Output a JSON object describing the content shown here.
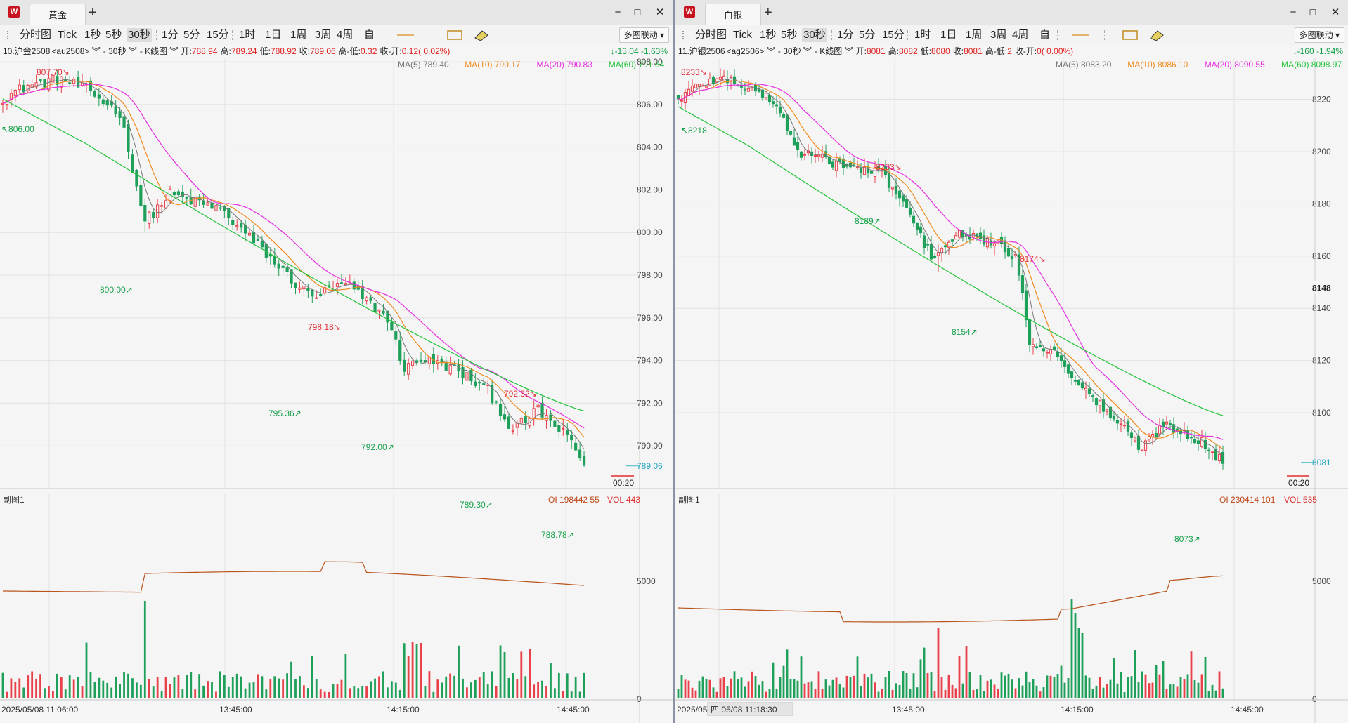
{
  "toolbar_labels": [
    "分时图",
    "Tick",
    "1秒",
    "5秒",
    "30秒",
    "1分",
    "5分",
    "15分",
    "1时",
    "1日",
    "1周",
    "3周",
    "4周",
    "自"
  ],
  "active_interval": "30秒",
  "linkage_label": "多图联动",
  "colors": {
    "up": "#e8414a",
    "down": "#1fa05a",
    "ma5": "#777777",
    "ma10": "#f08a1c",
    "ma20": "#e62ee0",
    "ma60": "#22c23a",
    "oi": "#b8541c"
  },
  "panels": [
    {
      "tab": "黄金",
      "quote": {
        "symbol": "10.沪金2508",
        "code": "<au2508> ︾",
        "interval": "- 30秒 ︾",
        "type": "- K线图 ︾",
        "open_label": "开:",
        "open": "788.94",
        "high_label": "高:",
        "high": "789.24",
        "low_label": "低:",
        "low": "788.92",
        "close_label": "收:",
        "close": "789.06",
        "hl_label": "高-低:",
        "hl": "0.32",
        "co_label": "收-开:",
        "co": "0.12( 0.02%)",
        "change": "↓-13.04 -1.63%"
      },
      "ma_labels": {
        "ma5": "MA(5) 789.40",
        "ma10": "MA(10) 790.17",
        "ma20": "MA(20) 790.83",
        "ma60": "MA(60) 791.64"
      },
      "price_axis": [
        "808.00",
        "806.00",
        "804.00",
        "802.00",
        "800.00",
        "798.00",
        "796.00",
        "794.00",
        "792.00",
        "790.00"
      ],
      "price_range": [
        788.0,
        808.2
      ],
      "last_price": "789.06",
      "countdown": "00:20",
      "peak_annotations": [
        "807.70↘",
        "798.18↘",
        "792.32↘"
      ],
      "trough_annotations": [
        "↖806.00",
        "800.00↗",
        "795.36↗",
        "792.00↗",
        "789.30↗",
        "788.78↗"
      ],
      "sub_title": "副图1",
      "sub_labels": {
        "oi": "OI 198442 55",
        "vol": "VOL 443"
      },
      "sub_axis": [
        "5000",
        "0"
      ],
      "time_labels": [
        "2025/05/08 11:06:00",
        "13:45:00",
        "14:15:00",
        "14:45:00"
      ],
      "chart_data": {
        "type": "candlestick",
        "waypoints": [
          {
            "i": 0,
            "p": 806.3
          },
          {
            "i": 6,
            "p": 806.9
          },
          {
            "i": 14,
            "p": 807.2
          },
          {
            "i": 20,
            "p": 806.7
          },
          {
            "i": 28,
            "p": 805.6
          },
          {
            "i": 34,
            "p": 800.5
          },
          {
            "i": 40,
            "p": 801.8
          },
          {
            "i": 52,
            "p": 801.1
          },
          {
            "i": 62,
            "p": 799.2
          },
          {
            "i": 70,
            "p": 797.6
          },
          {
            "i": 74,
            "p": 797.0
          },
          {
            "i": 82,
            "p": 797.6
          },
          {
            "i": 92,
            "p": 796.0
          },
          {
            "i": 96,
            "p": 793.6
          },
          {
            "i": 100,
            "p": 794.1
          },
          {
            "i": 108,
            "p": 793.6
          },
          {
            "i": 116,
            "p": 792.6
          },
          {
            "i": 122,
            "p": 790.7
          },
          {
            "i": 128,
            "p": 791.7
          },
          {
            "i": 136,
            "p": 790.2
          },
          {
            "i": 139,
            "p": 789.1
          }
        ],
        "bars": 140,
        "shocks": [
          {
            "i": 34,
            "low": 800.0
          }
        ],
        "ma60_start": 806.6,
        "ma60_end": 791.64
      }
    },
    {
      "tab": "白银",
      "quote": {
        "symbol": "11.沪银2506",
        "code": "<ag2506> ︾",
        "interval": "- 30秒 ︾",
        "type": "- K线图 ︾",
        "open_label": "开:",
        "open": "8081",
        "high_label": "高:",
        "high": "8082",
        "low_label": "低:",
        "low": "8080",
        "close_label": "收:",
        "close": "8081",
        "hl_label": "高-低:",
        "hl": "2",
        "co_label": "收-开:",
        "co": "0( 0.00%)",
        "change": "↓-160 -1.94%"
      },
      "ma_labels": {
        "ma5": "MA(5) 8083.20",
        "ma10": "MA(10) 8086.10",
        "ma20": "MA(20) 8090.55",
        "ma60": "MA(60) 8098.97"
      },
      "price_axis": [
        "8220",
        "8200",
        "8180",
        "8160",
        "8140",
        "8120",
        "8100"
      ],
      "price_range": [
        8071,
        8236
      ],
      "current_line": "8148",
      "last_price": "8081",
      "countdown": "00:20",
      "peak_annotations": [
        "8233↘",
        "8203↘",
        "8174↘"
      ],
      "trough_annotations": [
        "↖8218",
        "8189↗",
        "8154↗",
        "8073↗"
      ],
      "sub_title": "副图1",
      "sub_labels": {
        "oi": "OI 230414 101",
        "vol": "VOL 535"
      },
      "sub_axis": [
        "5000",
        "0"
      ],
      "time_labels": [
        "2025/05",
        "四 05/08 11:18:30",
        "13:45:00",
        "14:15:00",
        "14:45:00"
      ],
      "chart_data": {
        "type": "candlestick",
        "waypoints": [
          {
            "i": 0,
            "p": 8220
          },
          {
            "i": 6,
            "p": 8226
          },
          {
            "i": 14,
            "p": 8228
          },
          {
            "i": 24,
            "p": 8222
          },
          {
            "i": 28,
            "p": 8218
          },
          {
            "i": 34,
            "p": 8200
          },
          {
            "i": 44,
            "p": 8196
          },
          {
            "i": 52,
            "p": 8193
          },
          {
            "i": 58,
            "p": 8192
          },
          {
            "i": 64,
            "p": 8180
          },
          {
            "i": 72,
            "p": 8160
          },
          {
            "i": 80,
            "p": 8168
          },
          {
            "i": 88,
            "p": 8166
          },
          {
            "i": 96,
            "p": 8160
          },
          {
            "i": 100,
            "p": 8128
          },
          {
            "i": 108,
            "p": 8122
          },
          {
            "i": 116,
            "p": 8108
          },
          {
            "i": 124,
            "p": 8098
          },
          {
            "i": 132,
            "p": 8086
          },
          {
            "i": 138,
            "p": 8096
          },
          {
            "i": 148,
            "p": 8090
          },
          {
            "i": 155,
            "p": 8081
          }
        ],
        "bars": 156,
        "shocks": [
          {
            "i": 74,
            "low": 8154
          }
        ],
        "ma60_start": 8220,
        "ma60_end": 8098.97
      }
    }
  ]
}
